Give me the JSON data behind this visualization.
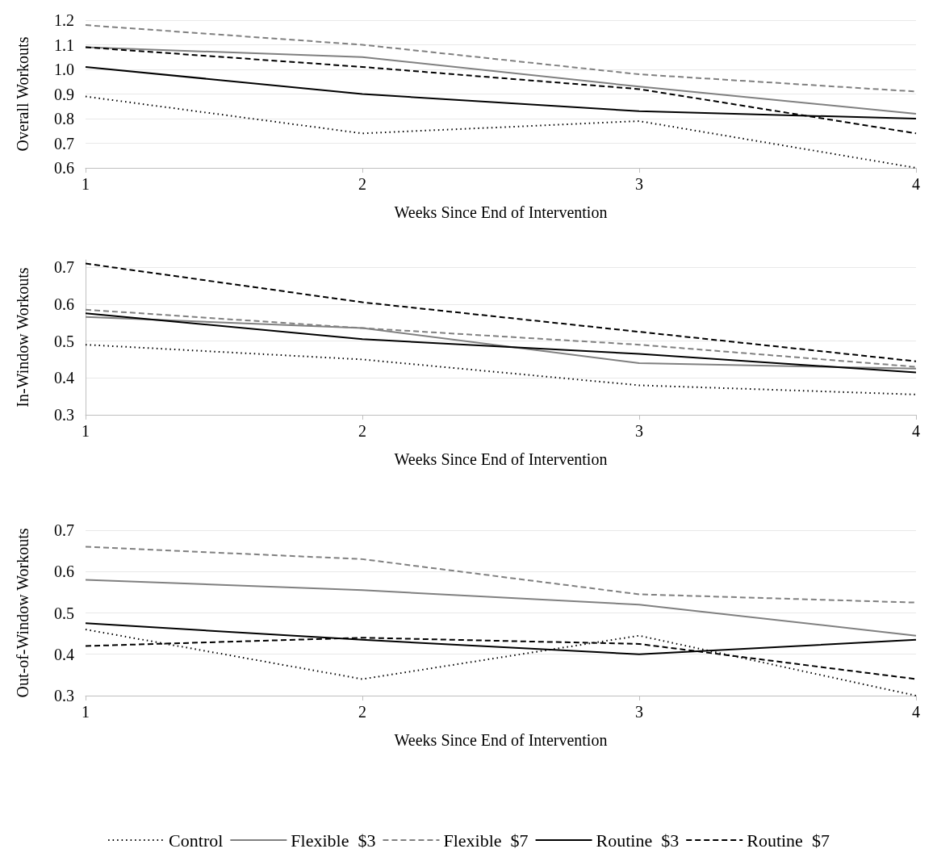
{
  "chart_data": [
    {
      "type": "line",
      "xlabel": "Weeks Since End of Intervention",
      "ylabel": "Overall Workouts",
      "x": [
        1,
        2,
        3,
        4
      ],
      "xlim": [
        1,
        4
      ],
      "xticks": [
        1,
        2,
        3,
        4
      ],
      "ylim": [
        0.6,
        1.2
      ],
      "yticks": [
        0.6,
        0.7,
        0.8,
        0.9,
        {
          "value": 1,
          "label": "1.0"
        },
        1.1,
        1.2
      ],
      "grid": "y",
      "legend": false,
      "marker": "none",
      "series": [
        {
          "color": "#000000",
          "line_style": "dotted",
          "values": [
            0.89,
            0.74,
            0.79,
            0.6
          ]
        },
        {
          "color": "#808080",
          "line_style": "solid",
          "values": [
            1.09,
            1.05,
            0.93,
            0.82
          ]
        },
        {
          "color": "#808080",
          "line_style": "dashed",
          "values": [
            1.18,
            1.1,
            0.98,
            0.91
          ]
        },
        {
          "color": "#000000",
          "line_style": "solid",
          "values": [
            1.01,
            0.9,
            0.83,
            0.8
          ]
        },
        {
          "color": "#000000",
          "line_style": "dashed",
          "values": [
            1.09,
            1.01,
            0.92,
            0.74
          ]
        }
      ]
    },
    {
      "type": "line",
      "xlabel": "Weeks Since End of Intervention",
      "ylabel": "In-Window Workouts",
      "x": [
        1,
        2,
        3,
        4
      ],
      "xlim": [
        1,
        4
      ],
      "xticks": [
        1,
        2,
        3,
        4
      ],
      "ylim": [
        0.3,
        0.72
      ],
      "yticks": [
        0.3,
        0.4,
        0.5,
        0.6,
        0.7
      ],
      "grid": "y",
      "legend": false,
      "marker": "none",
      "series": [
        {
          "color": "#000000",
          "line_style": "dotted",
          "values": [
            0.49,
            0.45,
            0.38,
            0.355
          ]
        },
        {
          "color": "#808080",
          "line_style": "solid",
          "values": [
            0.565,
            0.535,
            0.44,
            0.425
          ]
        },
        {
          "color": "#808080",
          "line_style": "dashed",
          "values": [
            0.585,
            0.535,
            0.49,
            0.43
          ]
        },
        {
          "color": "#000000",
          "line_style": "solid",
          "values": [
            0.575,
            0.505,
            0.465,
            0.415
          ]
        },
        {
          "color": "#000000",
          "line_style": "dashed",
          "values": [
            0.71,
            0.605,
            0.525,
            0.445
          ]
        }
      ]
    },
    {
      "type": "line",
      "xlabel": "Weeks Since End of Intervention",
      "ylabel": "Out-of-Window Workouts",
      "x": [
        1,
        2,
        3,
        4
      ],
      "xlim": [
        1,
        4
      ],
      "xticks": [
        1,
        2,
        3,
        4
      ],
      "ylim": [
        0.3,
        0.7
      ],
      "yticks": [
        0.3,
        0.4,
        0.5,
        0.6,
        0.7
      ],
      "grid": "y",
      "legend": "bottom",
      "marker": "none",
      "series": [
        {
          "name": "Control",
          "color": "#000000",
          "line_style": "dotted",
          "values": [
            0.46,
            0.34,
            0.445,
            0.3
          ]
        },
        {
          "name": "Flexible  $3",
          "color": "#808080",
          "line_style": "solid",
          "values": [
            0.58,
            0.555,
            0.52,
            0.445
          ]
        },
        {
          "name": "Flexible  $7",
          "color": "#808080",
          "line_style": "dashed",
          "values": [
            0.66,
            0.63,
            0.545,
            0.525
          ]
        },
        {
          "name": "Routine  $3",
          "color": "#000000",
          "line_style": "solid",
          "values": [
            0.475,
            0.435,
            0.4,
            0.435
          ]
        },
        {
          "name": "Routine  $7",
          "color": "#000000",
          "line_style": "dashed",
          "values": [
            0.42,
            0.44,
            0.425,
            0.34
          ]
        }
      ]
    }
  ]
}
